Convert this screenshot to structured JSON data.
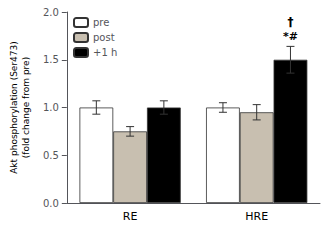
{
  "chart_data": {
    "type": "bar",
    "categories": [
      "RE",
      "HRE"
    ],
    "series": [
      {
        "name": "pre",
        "color": "white",
        "values": [
          1.0,
          1.0
        ],
        "errors": [
          0.07,
          0.05
        ]
      },
      {
        "name": "post",
        "color": "#c8bfb0",
        "values": [
          0.75,
          0.95
        ],
        "errors": [
          0.05,
          0.08
        ]
      },
      {
        "name": "+1 h",
        "color": "black",
        "values": [
          1.0,
          1.5
        ],
        "errors": [
          0.07,
          0.14
        ]
      }
    ],
    "ylabel": "Akt phosphorylation (Ser473)\n(fold change from pre)",
    "ylim": [
      0.0,
      2.0
    ],
    "yticks": [
      {
        "value": 0.0,
        "label": "0.0"
      },
      0.5,
      {
        "value": 1.0,
        "label": "1.0"
      },
      1.5,
      {
        "value": 2.0,
        "label": "2.0"
      }
    ],
    "grid": false,
    "legend": "upper left",
    "annotations": [
      {
        "text": "*#",
        "category": "HRE",
        "series": "+1 h"
      },
      {
        "text": "†",
        "category": "HRE",
        "series": "+1 h"
      }
    ]
  }
}
